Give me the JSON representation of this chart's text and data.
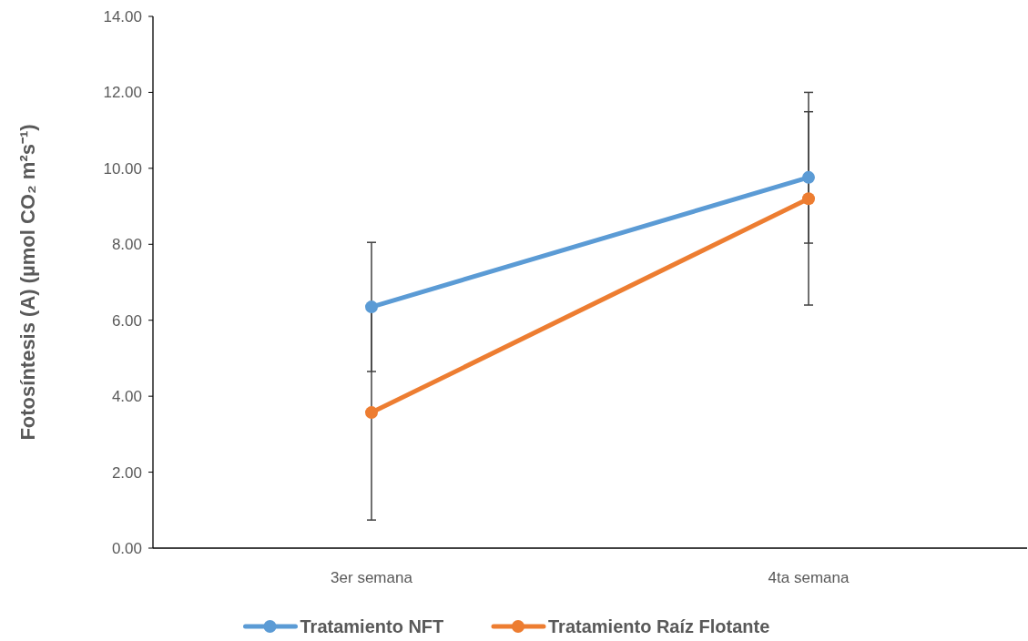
{
  "chart_data": {
    "type": "line",
    "ylabel": "Fotosíntesis (A) (µmol CO₂ m²s⁻¹)",
    "categories": [
      "3er semana",
      "4ta semana"
    ],
    "series": [
      {
        "name": "Tratamiento NFT",
        "color": "#5b9bd5",
        "values": [
          6.35,
          9.76
        ],
        "errors": [
          1.7,
          1.73
        ]
      },
      {
        "name": "Tratamiento Raíz Flotante",
        "color": "#ed7d31",
        "values": [
          3.57,
          9.2
        ],
        "errors": [
          2.83,
          2.8
        ]
      }
    ],
    "ylim": [
      0,
      14
    ],
    "yticks": [
      {
        "value": 0,
        "label": "0.00"
      },
      {
        "value": 2,
        "label": "2.00"
      },
      {
        "value": 4,
        "label": "4.00"
      },
      {
        "value": 6,
        "label": "6.00"
      },
      {
        "value": 8,
        "label": "8.00"
      },
      {
        "value": 10,
        "label": "10.00"
      },
      {
        "value": 12,
        "label": "12.00"
      },
      {
        "value": 14,
        "label": "14.00"
      }
    ],
    "grid": false,
    "legend": "bottom",
    "marker": "circle",
    "line_style": "solid"
  }
}
